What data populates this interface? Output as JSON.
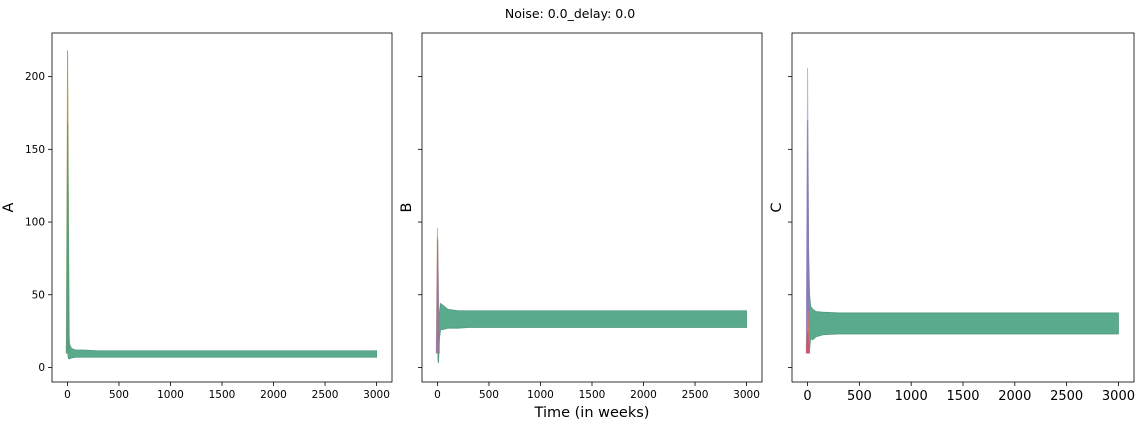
{
  "chart_data": {
    "title": "Noise: 0.0_delay: 0.0",
    "xlabel": "Time (in weeks)",
    "panels": [
      {
        "type": "area",
        "ylabel": "A",
        "xlim": [
          -150,
          3150
        ],
        "ylim": [
          -10,
          230
        ],
        "xticks": [
          0,
          500,
          1000,
          1500,
          2000,
          2500,
          3000
        ],
        "yticks": [
          0,
          50,
          100,
          150,
          200
        ],
        "show_ytick_labels": true,
        "envelope": {
          "x": [
            0,
            5,
            10,
            15,
            20,
            40,
            80,
            150,
            300,
            3000
          ],
          "lower": [
            15,
            8,
            6,
            6,
            6,
            6.5,
            7,
            7,
            7,
            7
          ],
          "upper": [
            218,
            160,
            60,
            22,
            16,
            13,
            12,
            12,
            11.5,
            11.5
          ]
        },
        "spikes": [
          {
            "color": "#e07b5a",
            "x": 0,
            "peak": 48
          },
          {
            "color": "#c9a33c",
            "x": 1,
            "peak": 218
          },
          {
            "color": "#3a9e8f",
            "x": 2,
            "peak": 168
          }
        ]
      },
      {
        "type": "area",
        "ylabel": "B",
        "xlim": [
          -150,
          3150
        ],
        "ylim": [
          -10,
          230
        ],
        "xticks": [
          0,
          500,
          1000,
          1500,
          2000,
          2500,
          3000
        ],
        "yticks": [
          0,
          50,
          100,
          150,
          200
        ],
        "show_ytick_labels": false,
        "envelope": {
          "x": [
            0,
            5,
            10,
            20,
            30,
            50,
            100,
            200,
            300,
            3000
          ],
          "lower": [
            60,
            5,
            3,
            20,
            26,
            26,
            27,
            27,
            27.5,
            27.5
          ],
          "upper": [
            90,
            40,
            30,
            38,
            44,
            43,
            40,
            39,
            39,
            39
          ]
        },
        "spikes": [
          {
            "color": "#c9a33c",
            "x": 0,
            "peak": 96
          },
          {
            "color": "#8a6bb5",
            "x": 2,
            "peak": 88
          }
        ]
      },
      {
        "type": "area",
        "ylabel": "C",
        "xlim": [
          -150,
          3150
        ],
        "ylim": [
          -10,
          230
        ],
        "xticks": [
          0,
          500,
          1000,
          1500,
          2000,
          2500,
          3000
        ],
        "yticks": [
          0,
          50,
          100,
          150,
          200
        ],
        "show_ytick_labels": false,
        "envelope": {
          "x": [
            0,
            10,
            20,
            30,
            50,
            80,
            150,
            300,
            3000
          ],
          "lower": [
            40,
            20,
            12,
            20,
            19,
            21,
            22.5,
            23,
            23
          ],
          "upper": [
            150,
            80,
            50,
            42,
            40,
            38.5,
            38,
            37.5,
            37.5
          ]
        },
        "spikes": [
          {
            "color": "#9aa6c8",
            "x": 0,
            "peak": 206
          },
          {
            "color": "#8a6bb5",
            "x": 1,
            "peak": 170
          },
          {
            "color": "#e07b5a",
            "x": 3,
            "peak": 40
          },
          {
            "color": "#c94a6a",
            "x": 2,
            "peak": 25
          }
        ]
      }
    ],
    "colors": {
      "fill": "#5aab8c",
      "edge": "#4f9a7f"
    }
  }
}
